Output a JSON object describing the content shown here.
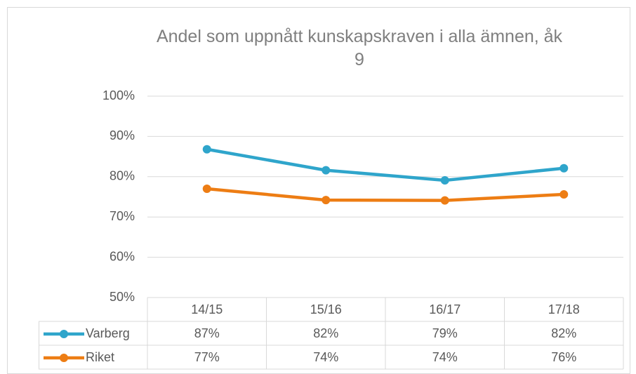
{
  "chart_data": {
    "type": "line",
    "title": "Andel som uppnått kunskapskraven i alla ämnen, åk 9",
    "categories": [
      "14/15",
      "15/16",
      "16/17",
      "17/18"
    ],
    "series": [
      {
        "name": "Varberg",
        "color": "#2fa5cb",
        "values": [
          86.8,
          81.6,
          79.1,
          82.1
        ],
        "value_labels": [
          "87%",
          "82%",
          "79%",
          "82%"
        ]
      },
      {
        "name": "Riket",
        "color": "#ed7d14",
        "values": [
          77.0,
          74.2,
          74.1,
          75.6
        ],
        "value_labels": [
          "77%",
          "74%",
          "74%",
          "76%"
        ]
      }
    ],
    "ylim": [
      50,
      100
    ],
    "yticks": [
      {
        "value": 50,
        "label": "50%"
      },
      {
        "value": 60,
        "label": "60%"
      },
      {
        "value": 70,
        "label": "70%"
      },
      {
        "value": 80,
        "label": "80%"
      },
      {
        "value": 90,
        "label": "90%"
      },
      {
        "value": 100,
        "label": "100%"
      }
    ],
    "grid": true,
    "data_table": true
  }
}
